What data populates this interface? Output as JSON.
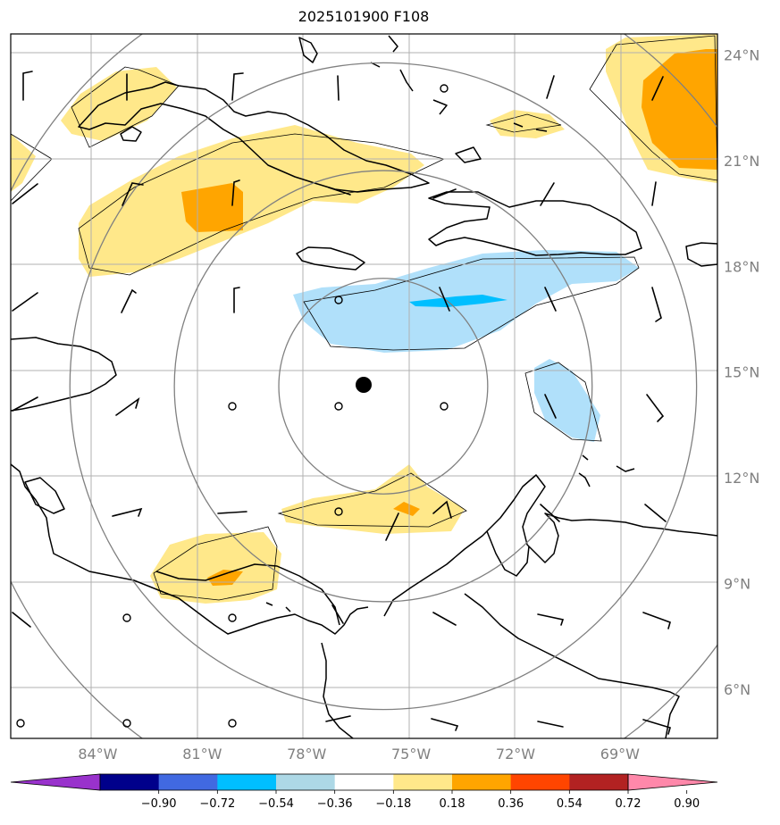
{
  "title": "2025101900 F108",
  "map": {
    "lon_range": [
      -86.5,
      -66.2
    ],
    "lat_range": [
      4.6,
      24.6
    ],
    "lat_ticks": [
      {
        "value": 24,
        "label": "24°N"
      },
      {
        "value": 21,
        "label": "21°N"
      },
      {
        "value": 18,
        "label": "18°N"
      },
      {
        "value": 15,
        "label": "15°N"
      },
      {
        "value": 12,
        "label": "12°N"
      },
      {
        "value": 9,
        "label": "9°N"
      },
      {
        "value": 6,
        "label": "6°N"
      }
    ],
    "lon_ticks": [
      {
        "value": -84,
        "label": "84°W"
      },
      {
        "value": -81,
        "label": "81°W"
      },
      {
        "value": -78,
        "label": "78°W"
      },
      {
        "value": -75,
        "label": "75°W"
      },
      {
        "value": -72,
        "label": "72°W"
      },
      {
        "value": -69,
        "label": "69°W"
      }
    ],
    "center": {
      "lon": -75.8,
      "lat": 14.6
    },
    "range_ring_radii_deg": [
      3,
      6,
      9,
      12
    ]
  },
  "colorbar": {
    "ticks": [
      "−0.90",
      "−0.72",
      "−0.54",
      "−0.36",
      "−0.18",
      "0.18",
      "0.36",
      "0.54",
      "0.72",
      "0.90"
    ],
    "colors": [
      "#9932cc",
      "#00008b",
      "#4169e1",
      "#00bfff",
      "#add8e6",
      "#ffffff",
      "#ffe88a",
      "#ffa500",
      "#ff4500",
      "#b22222",
      "#ff88aa"
    ]
  },
  "shading": {
    "yellow": "#ffe88a",
    "orange": "#ffa500",
    "lightblue": "#b0e0fa",
    "blue": "#00bfff"
  },
  "icons": {
    "storm_center": "filled-circle",
    "calm_wind": "open-circle",
    "wind": "wind-barb"
  }
}
